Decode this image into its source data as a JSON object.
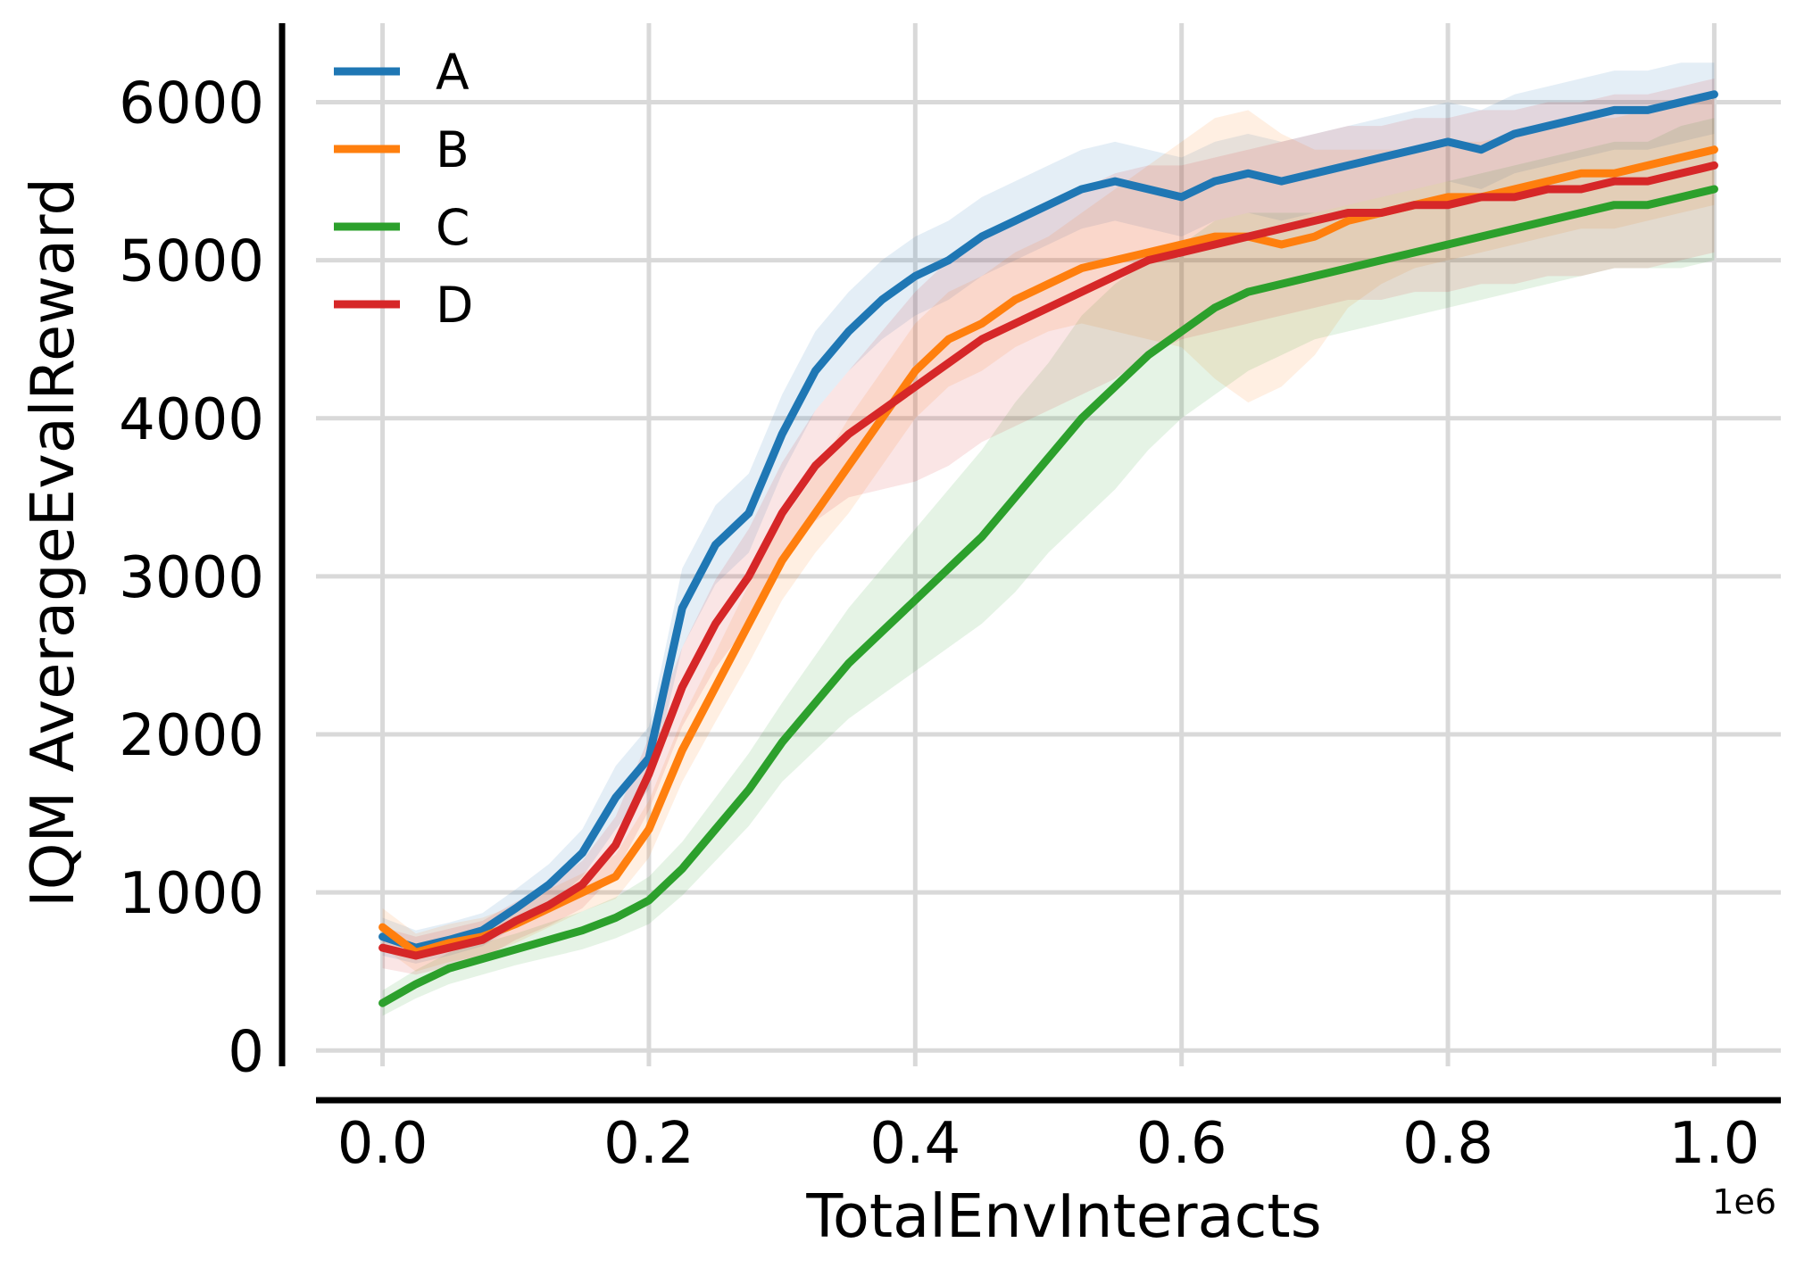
{
  "chart_data": {
    "type": "line",
    "xlabel": "TotalEnvInteracts",
    "ylabel": "IQM AverageEvalReward",
    "x_offset_label": "1e6",
    "xlim": [
      -0.05,
      1.05
    ],
    "ylim": [
      -100,
      6500
    ],
    "x_ticks": [
      0.0,
      0.2,
      0.4,
      0.6,
      0.8,
      1.0
    ],
    "x_tick_labels": [
      "0.0",
      "0.2",
      "0.4",
      "0.6",
      "0.8",
      "1.0"
    ],
    "y_ticks": [
      0,
      1000,
      2000,
      3000,
      4000,
      5000,
      6000
    ],
    "y_tick_labels": [
      "0",
      "1000",
      "2000",
      "3000",
      "4000",
      "5000",
      "6000"
    ],
    "grid": true,
    "legend_position": "top-left",
    "x": [
      0.0,
      0.025,
      0.05,
      0.075,
      0.1,
      0.125,
      0.15,
      0.175,
      0.2,
      0.225,
      0.25,
      0.275,
      0.3,
      0.325,
      0.35,
      0.375,
      0.4,
      0.425,
      0.45,
      0.475,
      0.5,
      0.525,
      0.55,
      0.575,
      0.6,
      0.625,
      0.65,
      0.675,
      0.7,
      0.725,
      0.75,
      0.775,
      0.8,
      0.825,
      0.85,
      0.875,
      0.9,
      0.925,
      0.95,
      0.975,
      1.0
    ],
    "series": [
      {
        "name": "A",
        "color": "#1f77b4",
        "values": [
          720,
          650,
          700,
          760,
          900,
          1050,
          1250,
          1600,
          1850,
          2800,
          3200,
          3400,
          3900,
          4300,
          4550,
          4750,
          4900,
          5000,
          5150,
          5250,
          5350,
          5450,
          5500,
          5450,
          5400,
          5500,
          5550,
          5500,
          5550,
          5600,
          5650,
          5700,
          5750,
          5700,
          5800,
          5850,
          5900,
          5950,
          5950,
          6000,
          6050
        ],
        "lower": [
          600,
          550,
          600,
          660,
          780,
          920,
          1100,
          1400,
          1650,
          2550,
          2950,
          3150,
          3650,
          4050,
          4300,
          4500,
          4650,
          4750,
          4900,
          5000,
          5100,
          5200,
          5250,
          5200,
          5150,
          5250,
          5300,
          5250,
          5300,
          5350,
          5400,
          5450,
          5500,
          5450,
          5550,
          5600,
          5650,
          5700,
          5700,
          5750,
          5800
        ],
        "upper": [
          840,
          760,
          810,
          870,
          1020,
          1180,
          1400,
          1800,
          2050,
          3050,
          3450,
          3650,
          4150,
          4550,
          4800,
          5000,
          5150,
          5250,
          5400,
          5500,
          5600,
          5700,
          5750,
          5700,
          5650,
          5750,
          5800,
          5750,
          5800,
          5850,
          5900,
          5950,
          6000,
          5950,
          6050,
          6100,
          6150,
          6200,
          6200,
          6250,
          6250
        ]
      },
      {
        "name": "B",
        "color": "#ff7f0e",
        "values": [
          780,
          620,
          680,
          720,
          800,
          900,
          1000,
          1100,
          1400,
          1900,
          2300,
          2700,
          3100,
          3400,
          3700,
          4000,
          4300,
          4500,
          4600,
          4750,
          4850,
          4950,
          5000,
          5050,
          5100,
          5150,
          5150,
          5100,
          5150,
          5250,
          5300,
          5350,
          5400,
          5400,
          5450,
          5500,
          5550,
          5550,
          5600,
          5650,
          5700
        ],
        "lower": [
          650,
          500,
          560,
          600,
          680,
          780,
          880,
          960,
          1220,
          1700,
          2080,
          2450,
          2850,
          3150,
          3400,
          3700,
          4000,
          4200,
          4300,
          4450,
          4550,
          4600,
          4550,
          4500,
          4450,
          4250,
          4100,
          4200,
          4400,
          4700,
          4850,
          4950,
          5000,
          5050,
          5100,
          5150,
          5200,
          5200,
          5250,
          5300,
          5350
        ],
        "upper": [
          900,
          740,
          800,
          840,
          920,
          1020,
          1120,
          1240,
          1580,
          2100,
          2520,
          2950,
          3350,
          3650,
          4000,
          4300,
          4600,
          4800,
          4900,
          5050,
          5150,
          5300,
          5450,
          5600,
          5750,
          5900,
          5950,
          5800,
          5700,
          5700,
          5700,
          5700,
          5750,
          5750,
          5800,
          5850,
          5900,
          5900,
          5950,
          6000,
          6050
        ]
      },
      {
        "name": "C",
        "color": "#2ca02c",
        "values": [
          300,
          420,
          520,
          580,
          640,
          700,
          760,
          840,
          950,
          1150,
          1400,
          1650,
          1950,
          2200,
          2450,
          2650,
          2850,
          3050,
          3250,
          3500,
          3750,
          4000,
          4200,
          4400,
          4550,
          4700,
          4800,
          4850,
          4900,
          4950,
          5000,
          5050,
          5100,
          5150,
          5200,
          5250,
          5300,
          5350,
          5350,
          5400,
          5450
        ],
        "lower": [
          220,
          330,
          420,
          480,
          540,
          590,
          640,
          710,
          800,
          980,
          1200,
          1420,
          1700,
          1900,
          2100,
          2250,
          2400,
          2550,
          2700,
          2900,
          3150,
          3350,
          3550,
          3800,
          4000,
          4150,
          4300,
          4400,
          4500,
          4550,
          4600,
          4650,
          4700,
          4750,
          4800,
          4850,
          4900,
          4950,
          4950,
          4950,
          5000
        ],
        "upper": [
          380,
          510,
          620,
          680,
          740,
          810,
          880,
          970,
          1100,
          1320,
          1600,
          1880,
          2200,
          2500,
          2800,
          3050,
          3300,
          3550,
          3800,
          4100,
          4350,
          4650,
          4850,
          5000,
          5100,
          5250,
          5300,
          5300,
          5300,
          5350,
          5400,
          5450,
          5500,
          5550,
          5600,
          5650,
          5700,
          5750,
          5750,
          5850,
          5900
        ]
      },
      {
        "name": "D",
        "color": "#d62728",
        "values": [
          650,
          600,
          650,
          700,
          820,
          920,
          1050,
          1300,
          1750,
          2300,
          2700,
          3000,
          3400,
          3700,
          3900,
          4050,
          4200,
          4350,
          4500,
          4600,
          4700,
          4800,
          4900,
          5000,
          5050,
          5100,
          5150,
          5200,
          5250,
          5300,
          5300,
          5350,
          5350,
          5400,
          5400,
          5450,
          5450,
          5500,
          5500,
          5550,
          5600
        ],
        "lower": [
          520,
          480,
          530,
          580,
          700,
          790,
          900,
          1120,
          1520,
          2050,
          2420,
          2700,
          3080,
          3350,
          3500,
          3550,
          3600,
          3700,
          3850,
          3950,
          4050,
          4150,
          4250,
          4400,
          4500,
          4550,
          4600,
          4650,
          4700,
          4750,
          4750,
          4800,
          4800,
          4850,
          4850,
          4900,
          4900,
          4950,
          4950,
          5000,
          5050
        ],
        "upper": [
          780,
          720,
          770,
          820,
          940,
          1050,
          1200,
          1480,
          1980,
          2550,
          2980,
          3300,
          3720,
          4050,
          4300,
          4550,
          4800,
          5000,
          5150,
          5250,
          5350,
          5450,
          5550,
          5600,
          5600,
          5650,
          5700,
          5750,
          5800,
          5850,
          5850,
          5900,
          5900,
          5950,
          5950,
          6000,
          6000,
          6050,
          6050,
          6100,
          6150
        ]
      }
    ]
  }
}
